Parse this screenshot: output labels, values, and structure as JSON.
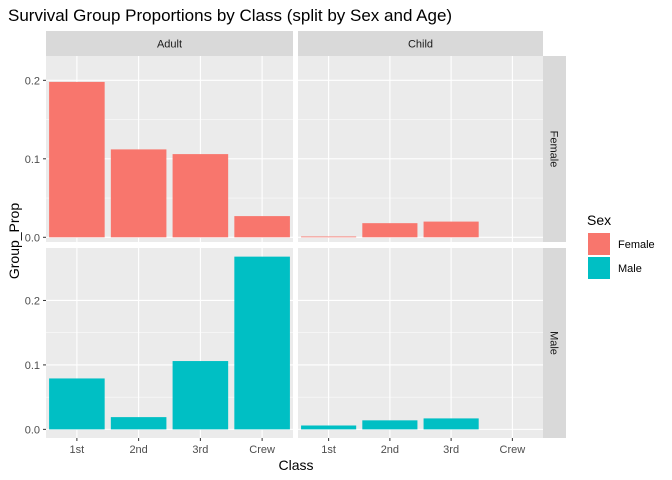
{
  "chart_data": {
    "type": "bar",
    "title": "Survival Group Proportions by Class (split by Sex and Age)",
    "xlabel": "Class",
    "ylabel": "Group_Prop",
    "categories": [
      "1st",
      "2nd",
      "3rd",
      "Crew"
    ],
    "facet_columns": [
      "Adult",
      "Child"
    ],
    "facet_rows": [
      "Female",
      "Male"
    ],
    "legend": {
      "title": "Sex",
      "position": "right",
      "items": [
        {
          "label": "Female",
          "color": "#F8766D"
        },
        {
          "label": "Male",
          "color": "#00BFC4"
        }
      ]
    },
    "panels": [
      {
        "column": "Adult",
        "row": "Female",
        "values": [
          0.198,
          0.112,
          0.106,
          0.027
        ]
      },
      {
        "column": "Child",
        "row": "Female",
        "values": [
          0.001,
          0.018,
          0.02,
          null
        ]
      },
      {
        "column": "Adult",
        "row": "Male",
        "values": [
          0.079,
          0.019,
          0.106,
          0.268
        ]
      },
      {
        "column": "Child",
        "row": "Male",
        "values": [
          0.006,
          0.014,
          0.017,
          null
        ]
      }
    ],
    "row_ylim": {
      "Female": [
        -0.006,
        0.231
      ],
      "Male": [
        -0.0134,
        0.2814
      ]
    },
    "row_yticks": {
      "Female": [
        0.0,
        0.1,
        0.2
      ],
      "Male": [
        0.0,
        0.1,
        0.2
      ]
    },
    "ytick_labels": [
      "0.0",
      "0.1",
      "0.2"
    ],
    "grid": true
  }
}
